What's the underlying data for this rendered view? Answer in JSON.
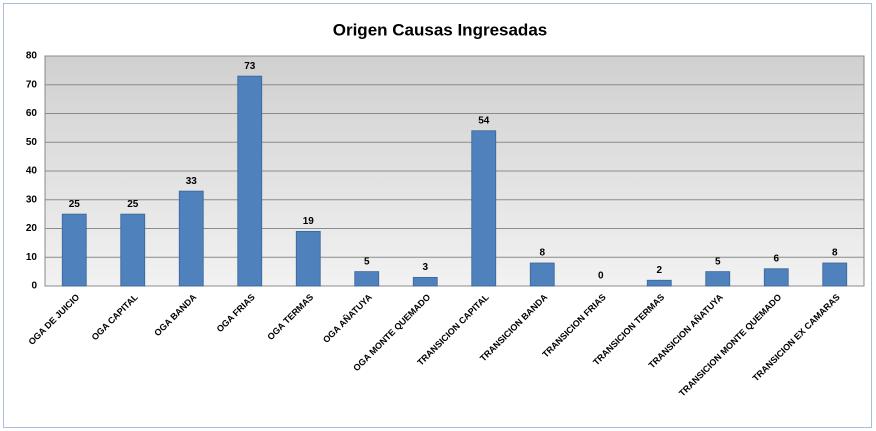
{
  "chart_data": {
    "type": "bar",
    "title": "Origen Causas Ingresadas",
    "categories": [
      "OGA DE JUICIO",
      "OGA CAPITAL",
      "OGA BANDA",
      "OGA FRIAS",
      "OGA TERMAS",
      "OGA AÑATUYA",
      "OGA MONTE QUEMADO",
      "TRANSICION CAPITAL",
      "TRANSICION BANDA",
      "TRANSICION FRIAS",
      "TRANSICION TERMAS",
      "TRANSICION AÑATUYA",
      "TRANSICION MONTE QUEMADO",
      "TRANSICION EX CAMARAS"
    ],
    "values": [
      25,
      25,
      33,
      73,
      19,
      5,
      3,
      54,
      8,
      0,
      2,
      5,
      6,
      8
    ],
    "color": "#4f81bd",
    "ylim": [
      0,
      80
    ],
    "yticks": [
      0,
      10,
      20,
      30,
      40,
      50,
      60,
      70,
      80
    ],
    "grid": true
  }
}
